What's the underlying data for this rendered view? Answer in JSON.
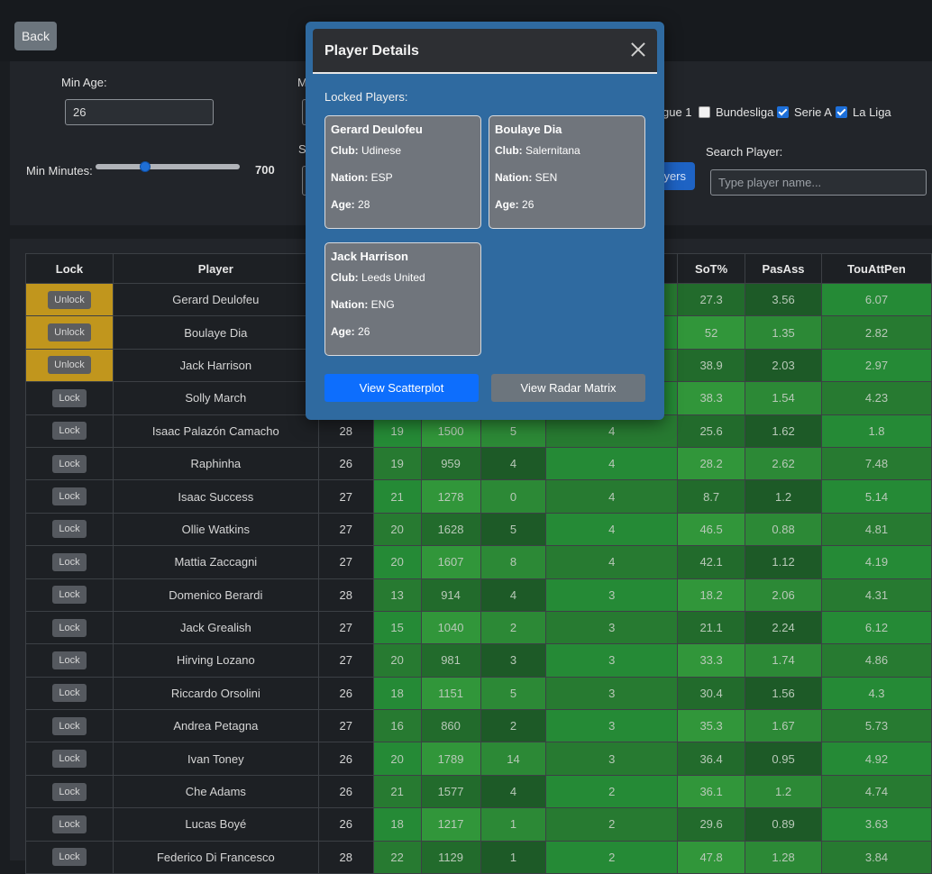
{
  "back_label": "Back",
  "filters": {
    "min_age_label": "Min Age:",
    "min_age_value": "26",
    "min_minutes_label": "Min Minutes:",
    "min_minutes_value": "700",
    "min_minutes_fraction": 0.35,
    "partial_label_m": "M",
    "partial_label_s": "S",
    "leagues": [
      {
        "label": "gue 1",
        "checked": null
      },
      {
        "label": "Bundesliga",
        "checked": false
      },
      {
        "label": "Serie A",
        "checked": true
      },
      {
        "label": "La Liga",
        "checked": true
      }
    ],
    "players_button_partial": "yers",
    "search_label": "Search Player:",
    "search_placeholder": "Type player name..."
  },
  "table": {
    "headers": {
      "lock": "Lock",
      "player": "Player",
      "sot": "SoT%",
      "pasass": "PasAss",
      "touattpen": "TouAttPen"
    },
    "unlock_label": "Unlock",
    "lock_label": "Lock",
    "rows": [
      {
        "locked": true,
        "player": "Gerard Deulofeu",
        "age": "",
        "c1": "",
        "c2": "",
        "c3": "",
        "c4": "",
        "sot": "27.3",
        "pasass": "3.56",
        "tou": "6.07"
      },
      {
        "locked": true,
        "player": "Boulaye Dia",
        "age": "",
        "c1": "",
        "c2": "",
        "c3": "",
        "c4": "",
        "sot": "52",
        "pasass": "1.35",
        "tou": "2.82"
      },
      {
        "locked": true,
        "player": "Jack Harrison",
        "age": "",
        "c1": "",
        "c2": "",
        "c3": "",
        "c4": "",
        "sot": "38.9",
        "pasass": "2.03",
        "tou": "2.97"
      },
      {
        "locked": false,
        "player": "Solly March",
        "age": "",
        "c1": "",
        "c2": "",
        "c3": "",
        "c4": "",
        "sot": "38.3",
        "pasass": "1.54",
        "tou": "4.23"
      },
      {
        "locked": false,
        "player": "Isaac Palazón Camacho",
        "age": "28",
        "c1": "19",
        "c2": "1500",
        "c3": "5",
        "c4": "4",
        "sot": "25.6",
        "pasass": "1.62",
        "tou": "1.8"
      },
      {
        "locked": false,
        "player": "Raphinha",
        "age": "26",
        "c1": "19",
        "c2": "959",
        "c3": "4",
        "c4": "4",
        "sot": "28.2",
        "pasass": "2.62",
        "tou": "7.48"
      },
      {
        "locked": false,
        "player": "Isaac Success",
        "age": "27",
        "c1": "21",
        "c2": "1278",
        "c3": "0",
        "c4": "4",
        "sot": "8.7",
        "pasass": "1.2",
        "tou": "5.14"
      },
      {
        "locked": false,
        "player": "Ollie Watkins",
        "age": "27",
        "c1": "20",
        "c2": "1628",
        "c3": "5",
        "c4": "4",
        "sot": "46.5",
        "pasass": "0.88",
        "tou": "4.81"
      },
      {
        "locked": false,
        "player": "Mattia Zaccagni",
        "age": "27",
        "c1": "20",
        "c2": "1607",
        "c3": "8",
        "c4": "4",
        "sot": "42.1",
        "pasass": "1.12",
        "tou": "4.19"
      },
      {
        "locked": false,
        "player": "Domenico Berardi",
        "age": "28",
        "c1": "13",
        "c2": "914",
        "c3": "4",
        "c4": "3",
        "sot": "18.2",
        "pasass": "2.06",
        "tou": "4.31"
      },
      {
        "locked": false,
        "player": "Jack Grealish",
        "age": "27",
        "c1": "15",
        "c2": "1040",
        "c3": "2",
        "c4": "3",
        "sot": "21.1",
        "pasass": "2.24",
        "tou": "6.12"
      },
      {
        "locked": false,
        "player": "Hirving Lozano",
        "age": "27",
        "c1": "20",
        "c2": "981",
        "c3": "3",
        "c4": "3",
        "sot": "33.3",
        "pasass": "1.74",
        "tou": "4.86"
      },
      {
        "locked": false,
        "player": "Riccardo Orsolini",
        "age": "26",
        "c1": "18",
        "c2": "1151",
        "c3": "5",
        "c4": "3",
        "sot": "30.4",
        "pasass": "1.56",
        "tou": "4.3"
      },
      {
        "locked": false,
        "player": "Andrea Petagna",
        "age": "27",
        "c1": "16",
        "c2": "860",
        "c3": "2",
        "c4": "3",
        "sot": "35.3",
        "pasass": "1.67",
        "tou": "5.73"
      },
      {
        "locked": false,
        "player": "Ivan Toney",
        "age": "26",
        "c1": "20",
        "c2": "1789",
        "c3": "14",
        "c4": "3",
        "sot": "36.4",
        "pasass": "0.95",
        "tou": "4.92"
      },
      {
        "locked": false,
        "player": "Che Adams",
        "age": "26",
        "c1": "21",
        "c2": "1577",
        "c3": "4",
        "c4": "2",
        "sot": "36.1",
        "pasass": "1.2",
        "tou": "4.74"
      },
      {
        "locked": false,
        "player": "Lucas Boyé",
        "age": "26",
        "c1": "18",
        "c2": "1217",
        "c3": "1",
        "c4": "2",
        "sot": "29.6",
        "pasass": "0.89",
        "tou": "3.63"
      },
      {
        "locked": false,
        "player": "Federico Di Francesco",
        "age": "28",
        "c1": "22",
        "c2": "1129",
        "c3": "1",
        "c4": "2",
        "sot": "47.8",
        "pasass": "1.28",
        "tou": "3.84"
      }
    ]
  },
  "modal": {
    "title": "Player Details",
    "locked_label": "Locked Players:",
    "club_key": "Club:",
    "nation_key": "Nation:",
    "age_key": "Age:",
    "cards": [
      {
        "name": "Gerard Deulofeu",
        "club": "Udinese",
        "nation": "ESP",
        "age": "28"
      },
      {
        "name": "Boulaye Dia",
        "club": "Salernitana",
        "nation": "SEN",
        "age": "26"
      },
      {
        "name": "Jack Harrison",
        "club": "Leeds United",
        "nation": "ENG",
        "age": "26"
      }
    ],
    "scatter_label": "View Scatterplot",
    "radar_label": "View Radar Matrix"
  }
}
